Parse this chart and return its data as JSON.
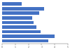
{
  "values": [
    1.5,
    3.2,
    2.8,
    2.3,
    2.4,
    2.6,
    2.9,
    4.0,
    3.5
  ],
  "bar_color": "#4472c4",
  "background_color": "#ffffff",
  "xlim": [
    0,
    5
  ],
  "xticks": [
    0,
    1,
    2,
    3,
    4,
    5
  ],
  "bar_height": 0.72,
  "figsize": [
    1.0,
    0.71
  ]
}
